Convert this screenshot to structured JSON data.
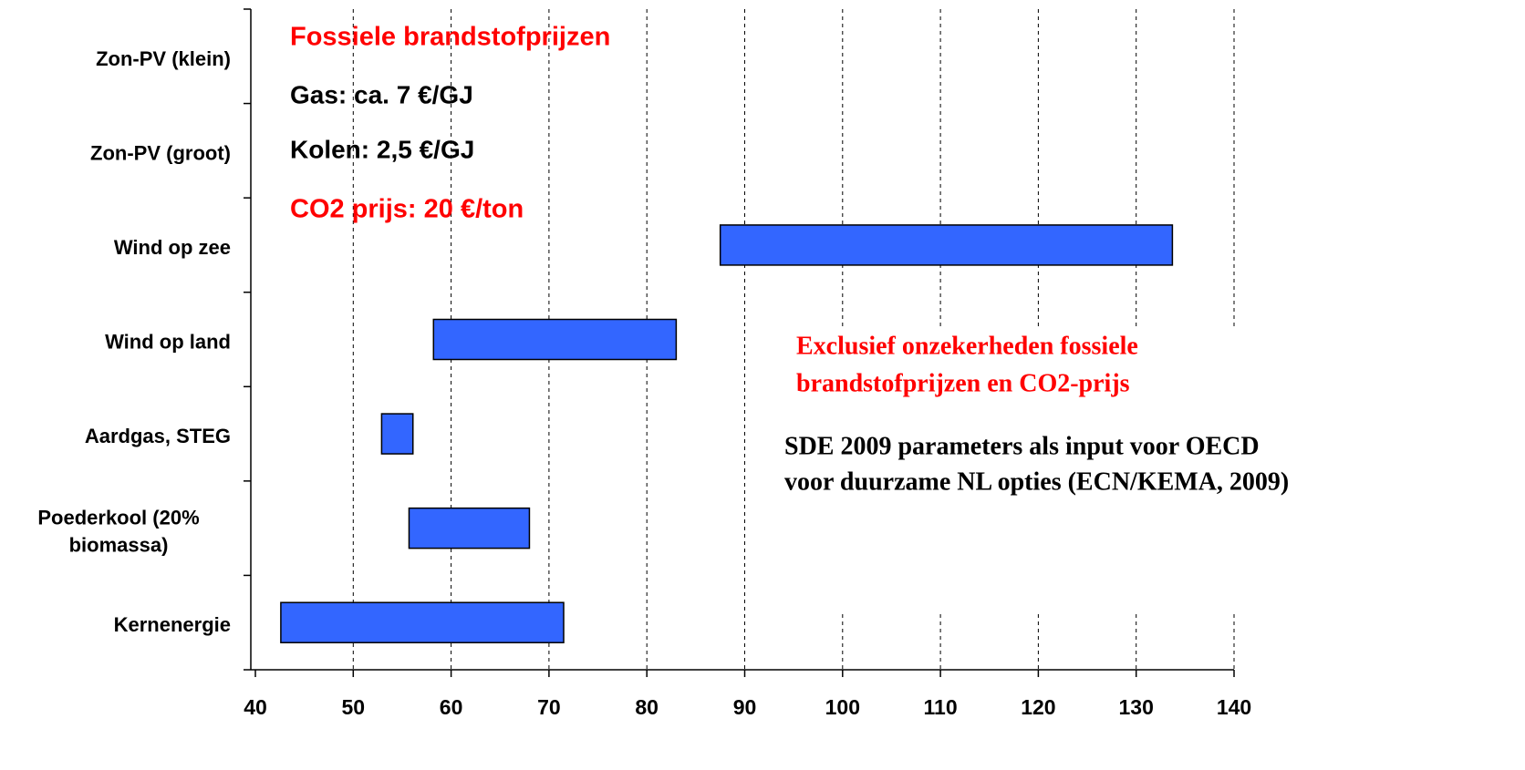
{
  "chart_data": {
    "type": "rangebar",
    "categories": [
      "Zon-PV (klein)",
      "Zon-PV (groot)",
      "Wind op zee",
      "Wind op land",
      "Aardgas, STEG",
      "Poederkool (20%\nbiomassa)",
      "Kernenergie"
    ],
    "low": [
      null,
      null,
      87.5,
      58.2,
      52.9,
      55.7,
      42.6
    ],
    "high": [
      null,
      null,
      133.7,
      83.0,
      56.1,
      68.0,
      71.5
    ],
    "color": "#3366ff",
    "xlim": [
      40,
      140
    ],
    "xticks": [
      40,
      50,
      60,
      70,
      80,
      90,
      100,
      110,
      120,
      130,
      140
    ],
    "grid": true,
    "annotations": [
      {
        "text": "Fossiele brandstofprijzen",
        "color": "#ff0000"
      },
      {
        "text": "Gas: ca. 7 €/GJ",
        "color": "#000000"
      },
      {
        "text": "Kolen: 2,5 €/GJ",
        "color": "#000000"
      },
      {
        "text": "CO2 prijs: 20 €/ton",
        "color": "#ff0000"
      },
      {
        "text": "Exclusief onzekerheden fossiele",
        "color": "#ff0000"
      },
      {
        "text": "brandstofprijzen en CO2-prijs",
        "color": "#ff0000"
      },
      {
        "text": "SDE 2009 parameters als input voor OECD",
        "color": "#000000"
      },
      {
        "text": "voor duurzame NL opties (ECN/KEMA, 2009)",
        "color": "#000000"
      }
    ]
  }
}
